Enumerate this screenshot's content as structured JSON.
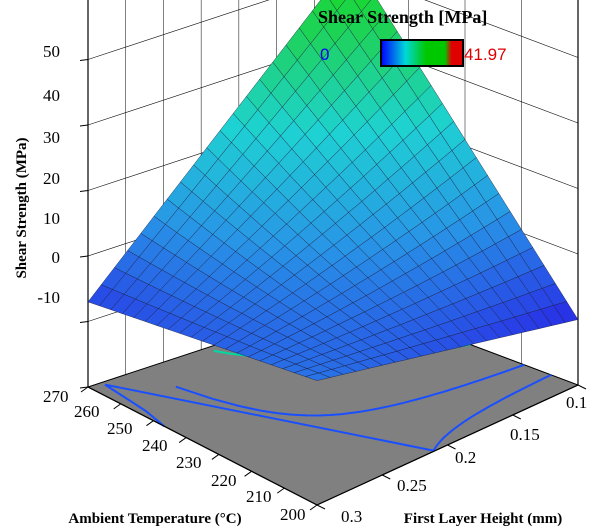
{
  "chart_data": {
    "type": "surface",
    "title": "Shear Strength [MPa]",
    "colorbar": {
      "min_label": "0",
      "max_label": "41.97",
      "min": 0,
      "max": 41.97,
      "colors": [
        "#0000ff",
        "#00d8d8",
        "#00c800",
        "#e00000"
      ]
    },
    "xlabel": "Ambient Temperature (°C)",
    "ylabel": "First Layer Height (mm)",
    "zlabel": "Shear Strength (MPa)",
    "x_ticks": [
      "270",
      "260",
      "250",
      "240",
      "230",
      "220",
      "210",
      "200"
    ],
    "y_ticks": [
      "0.1",
      "0.15",
      "0.2",
      "0.25",
      "0.3"
    ],
    "z_ticks": [
      "50",
      "40",
      "30",
      "20",
      "10",
      "0",
      "-10"
    ],
    "xlim": [
      200,
      270
    ],
    "ylim": [
      0.1,
      0.3
    ],
    "zlim": [
      -10,
      50
    ],
    "surface": {
      "corner_270_0.1": 42,
      "corner_270_0.3": 3,
      "corner_200_0.1": 0,
      "corner_200_0.3": 9,
      "center": 12
    },
    "floor_color": "#808080",
    "contour_color": "#1a4fff"
  }
}
